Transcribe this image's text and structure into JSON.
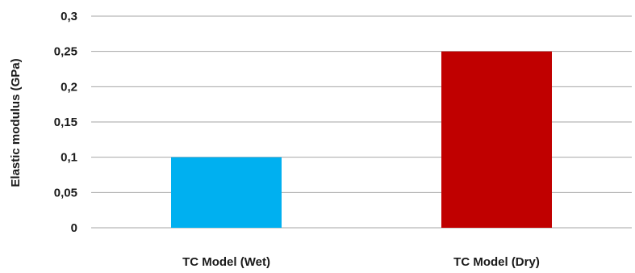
{
  "chart_data": {
    "type": "bar",
    "categories": [
      "TC Model (Wet)",
      "TC Model  (Dry)"
    ],
    "values": [
      0.1,
      0.25
    ],
    "colors": [
      "#00b0f0",
      "#c00000"
    ],
    "title": "",
    "xlabel": "",
    "ylabel": "Elastic modulus (GPa)",
    "ylim": [
      0,
      0.3
    ],
    "yticks": [
      0,
      0.05,
      0.1,
      0.15,
      0.2,
      0.25,
      0.3
    ],
    "ytick_labels": [
      "0",
      "0,05",
      "0,1",
      "0,15",
      "0,2",
      "0,25",
      "0,3"
    ],
    "grid": true,
    "gridline_color": "#a6a6a6",
    "legend": "none"
  }
}
